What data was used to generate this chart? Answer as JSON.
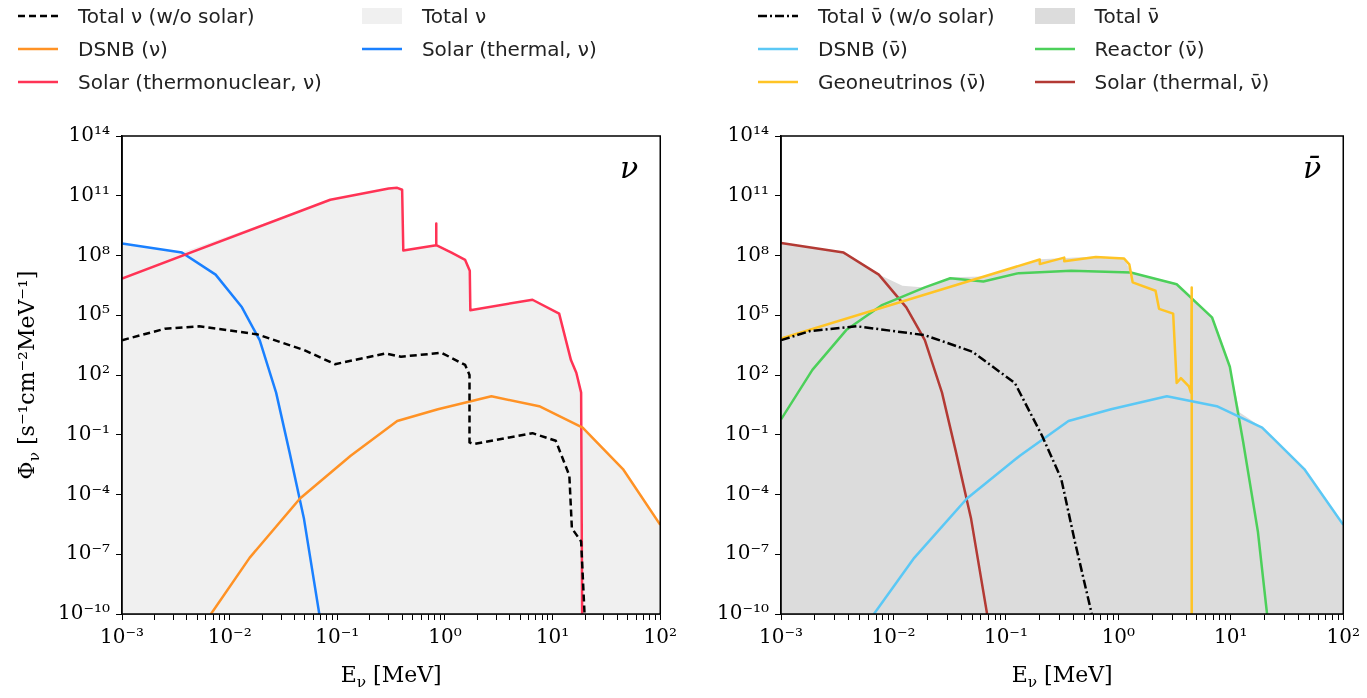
{
  "chart_data": [
    {
      "type": "line",
      "xlabel": "E$_{ν}$ [MeV]",
      "ylabel": "Φ$_{ν}$ [s⁻¹cm⁻²MeV⁻¹]",
      "log": "xy",
      "legend": "top",
      "annotations": [
        "ν"
      ],
      "xlim": [
        0.001,
        100
      ],
      "ylim": [
        1e-10,
        100000000000000.0
      ],
      "xticks": [
        {
          "value": 0.001,
          "label": "10⁻³"
        },
        {
          "value": 0.002,
          "label": null
        },
        {
          "value": 0.003,
          "label": null
        },
        {
          "value": 0.004,
          "label": null
        },
        {
          "value": 0.005,
          "label": null
        },
        {
          "value": 0.006,
          "label": null
        },
        {
          "value": 0.007,
          "label": null
        },
        {
          "value": 0.008,
          "label": null
        },
        {
          "value": 0.009,
          "label": null
        },
        {
          "value": 0.01,
          "label": "10⁻²"
        },
        {
          "value": 0.02,
          "label": null
        },
        {
          "value": 0.03,
          "label": null
        },
        {
          "value": 0.04,
          "label": null
        },
        {
          "value": 0.05,
          "label": null
        },
        {
          "value": 0.06,
          "label": null
        },
        {
          "value": 0.07,
          "label": null
        },
        {
          "value": 0.08,
          "label": null
        },
        {
          "value": 0.09,
          "label": null
        },
        {
          "value": 0.1,
          "label": "10⁻¹"
        },
        {
          "value": 0.2,
          "label": null
        },
        {
          "value": 0.3,
          "label": null
        },
        {
          "value": 0.4,
          "label": null
        },
        {
          "value": 0.5,
          "label": null
        },
        {
          "value": 0.6,
          "label": null
        },
        {
          "value": 0.7,
          "label": null
        },
        {
          "value": 0.8,
          "label": null
        },
        {
          "value": 0.9,
          "label": null
        },
        {
          "value": 1,
          "label": "10⁰"
        },
        {
          "value": 2,
          "label": null
        },
        {
          "value": 3,
          "label": null
        },
        {
          "value": 4,
          "label": null
        },
        {
          "value": 5,
          "label": null
        },
        {
          "value": 6,
          "label": null
        },
        {
          "value": 7,
          "label": null
        },
        {
          "value": 8,
          "label": null
        },
        {
          "value": 9,
          "label": null
        },
        {
          "value": 10,
          "label": "10¹"
        },
        {
          "value": 20,
          "label": null
        },
        {
          "value": 30,
          "label": null
        },
        {
          "value": 40,
          "label": null
        },
        {
          "value": 50,
          "label": null
        },
        {
          "value": 60,
          "label": null
        },
        {
          "value": 70,
          "label": null
        },
        {
          "value": 80,
          "label": null
        },
        {
          "value": 90,
          "label": null
        },
        {
          "value": 100,
          "label": "10²"
        }
      ],
      "yticks": [
        {
          "value": 1e-10,
          "label": "10⁻¹⁰"
        },
        {
          "value": 1e-07,
          "label": "10⁻⁷"
        },
        {
          "value": 0.0001,
          "label": "10⁻⁴"
        },
        {
          "value": 0.1,
          "label": "10⁻¹"
        },
        {
          "value": 100,
          "label": "10²"
        },
        {
          "value": 100000.0,
          "label": "10⁵"
        },
        {
          "value": 100000000.0,
          "label": "10⁸"
        },
        {
          "value": 100000000000.0,
          "label": "10¹¹"
        },
        {
          "value": 100000000000000.0,
          "label": "10¹⁴"
        }
      ],
      "series": [
        {
          "name": "Total ν (w/o solar)",
          "type": "line",
          "line_style": "dashed",
          "color": "#000000",
          "x": [
            0.001,
            0.0025,
            0.0052,
            0.018,
            0.049,
            0.095,
            0.28,
            0.39,
            0.93,
            1.54,
            1.69,
            1.69,
            1.84,
            6.5,
            10.7,
            14.3,
            15.1,
            18.4,
            19.8
          ],
          "values": [
            5600,
            21000,
            28000,
            11000,
            1800,
            350,
            1200,
            830,
            1300,
            320,
            100,
            0.041,
            0.034,
            0.12,
            0.05,
            0.0009,
            2e-06,
            4.4e-07,
            1e-10
          ]
        },
        {
          "name": "DSNB (ν)",
          "type": "line",
          "color": "#ff9225",
          "x": [
            0.0067,
            0.0153,
            0.045,
            0.133,
            0.36,
            0.86,
            2.7,
            7.5,
            19,
            45,
            100
          ],
          "values": [
            1e-10,
            6.6e-08,
            6.3e-05,
            0.0089,
            0.49,
            1.9,
            8.5,
            2.7,
            0.23,
            0.0019,
            3e-06
          ]
        },
        {
          "name": "Solar (thermonuclear, ν)",
          "type": "line",
          "color": "#ff3355",
          "x": [
            0.001,
            0.086,
            0.3,
            0.36,
            0.4,
            0.41,
            0.83,
            0.83,
            0.83,
            1.15,
            1.54,
            1.7,
            1.72,
            6.5,
            11.5,
            14.8,
            16.6,
            18.4,
            18.8
          ],
          "values": [
            7000000.0,
            63000000000.0,
            230000000000.0,
            250000000000.0,
            200000000000.0,
            180000000.0,
            330000000.0,
            4000000000.0,
            330000000.0,
            140000000.0,
            60000000.0,
            17000000.0,
            180000.0,
            600000.0,
            120000.0,
            560,
            130,
            13,
            1e-10
          ]
        },
        {
          "name": "Total ν",
          "type": "area",
          "color": "#f0f0f0",
          "x": [
            0.001,
            0.0036,
            0.086,
            0.3,
            0.36,
            0.4,
            0.41,
            0.83,
            1.15,
            1.54,
            1.7,
            1.72,
            6.5,
            11.5,
            14.8,
            16.6,
            18.4,
            18.8,
            45,
            100
          ],
          "values": [
            400000000.0,
            140000000.0,
            63000000000.0,
            230000000000.0,
            250000000000.0,
            200000000000.0,
            180000000.0,
            330000000.0,
            140000000.0,
            60000000.0,
            17000000.0,
            180000.0,
            600000.0,
            120000.0,
            560,
            130,
            13,
            0.25,
            0.0019,
            3e-06
          ]
        },
        {
          "name": "Solar (thermal, ν)",
          "type": "line",
          "color": "#1a80ff",
          "x": [
            0.001,
            0.0036,
            0.0074,
            0.013,
            0.019,
            0.027,
            0.036,
            0.049,
            0.068
          ],
          "values": [
            400000000.0,
            140000000.0,
            11000000.0,
            250000.0,
            5600,
            13,
            0.013,
            6e-06,
            1e-10
          ]
        }
      ]
    },
    {
      "type": "line",
      "xlabel": "E$_{ν}$ [MeV]",
      "log": "xy",
      "legend": "top",
      "annotations": [
        "ν̄"
      ],
      "xlim": [
        0.001,
        100
      ],
      "ylim": [
        1e-10,
        100000000000000.0
      ],
      "xticks": [
        {
          "value": 0.001,
          "label": "10⁻³"
        },
        {
          "value": 0.002,
          "label": null
        },
        {
          "value": 0.003,
          "label": null
        },
        {
          "value": 0.004,
          "label": null
        },
        {
          "value": 0.005,
          "label": null
        },
        {
          "value": 0.006,
          "label": null
        },
        {
          "value": 0.007,
          "label": null
        },
        {
          "value": 0.008,
          "label": null
        },
        {
          "value": 0.009,
          "label": null
        },
        {
          "value": 0.01,
          "label": "10⁻²"
        },
        {
          "value": 0.02,
          "label": null
        },
        {
          "value": 0.03,
          "label": null
        },
        {
          "value": 0.04,
          "label": null
        },
        {
          "value": 0.05,
          "label": null
        },
        {
          "value": 0.06,
          "label": null
        },
        {
          "value": 0.07,
          "label": null
        },
        {
          "value": 0.08,
          "label": null
        },
        {
          "value": 0.09,
          "label": null
        },
        {
          "value": 0.1,
          "label": "10⁻¹"
        },
        {
          "value": 0.2,
          "label": null
        },
        {
          "value": 0.3,
          "label": null
        },
        {
          "value": 0.4,
          "label": null
        },
        {
          "value": 0.5,
          "label": null
        },
        {
          "value": 0.6,
          "label": null
        },
        {
          "value": 0.7,
          "label": null
        },
        {
          "value": 0.8,
          "label": null
        },
        {
          "value": 0.9,
          "label": null
        },
        {
          "value": 1,
          "label": "10⁰"
        },
        {
          "value": 2,
          "label": null
        },
        {
          "value": 3,
          "label": null
        },
        {
          "value": 4,
          "label": null
        },
        {
          "value": 5,
          "label": null
        },
        {
          "value": 6,
          "label": null
        },
        {
          "value": 7,
          "label": null
        },
        {
          "value": 8,
          "label": null
        },
        {
          "value": 9,
          "label": null
        },
        {
          "value": 10,
          "label": "10¹"
        },
        {
          "value": 20,
          "label": null
        },
        {
          "value": 30,
          "label": null
        },
        {
          "value": 40,
          "label": null
        },
        {
          "value": 50,
          "label": null
        },
        {
          "value": 60,
          "label": null
        },
        {
          "value": 70,
          "label": null
        },
        {
          "value": 80,
          "label": null
        },
        {
          "value": 90,
          "label": null
        },
        {
          "value": 100,
          "label": "10²"
        }
      ],
      "yticks": [
        {
          "value": 1e-10,
          "label": "10⁻¹⁰"
        },
        {
          "value": 1e-07,
          "label": "10⁻⁷"
        },
        {
          "value": 0.0001,
          "label": "10⁻⁴"
        },
        {
          "value": 0.1,
          "label": "10⁻¹"
        },
        {
          "value": 100,
          "label": "10²"
        },
        {
          "value": 100000.0,
          "label": "10⁵"
        },
        {
          "value": 100000000.0,
          "label": "10⁸"
        },
        {
          "value": 100000000000.0,
          "label": "10¹¹"
        },
        {
          "value": 100000000000000.0,
          "label": "10¹⁴"
        }
      ],
      "series": [
        {
          "name": "Total ν̄ (w/o solar)",
          "type": "line",
          "line_style": "dashdot",
          "color": "#000000",
          "x": [
            0.001,
            0.0018,
            0.0047,
            0.019,
            0.05,
            0.12,
            0.21,
            0.31,
            0.41,
            0.58
          ],
          "values": [
            5600,
            16000,
            28000,
            10000,
            1500,
            40,
            0.087,
            0.00063,
            4.4e-07,
            1e-10
          ]
        },
        {
          "name": "DSNB (ν̄)",
          "type": "line",
          "color": "#5bc8f5",
          "x": [
            0.0067,
            0.0153,
            0.045,
            0.133,
            0.36,
            0.86,
            2.7,
            7.5,
            19,
            45,
            100
          ],
          "values": [
            1e-10,
            6.6e-08,
            6.3e-05,
            0.0089,
            0.49,
            1.9,
            8.5,
            2.7,
            0.23,
            0.0019,
            3e-06
          ]
        },
        {
          "name": "Geoneutrinos (ν̄)",
          "type": "line",
          "color": "#ffc425",
          "x": [
            0.001,
            0.2,
            0.2,
            0.33,
            0.33,
            0.63,
            1.12,
            1.25,
            1.34,
            2.14,
            2.3,
            3.07,
            3.3,
            3.6,
            4.24,
            4.42,
            4.49,
            4.49
          ],
          "values": [
            6800,
            63000000.0,
            37000000.0,
            78000000.0,
            52000000.0,
            83000000.0,
            71000000.0,
            36000000.0,
            4500000.0,
            1700000.0,
            210000.0,
            120000.0,
            40,
            70,
            27,
            13,
            2500000.0,
            1e-10
          ]
        },
        {
          "name": "Total ν̄",
          "type": "area",
          "color": "#dcdcdc",
          "x": [
            0.001,
            0.0036,
            0.0074,
            0.012,
            0.019,
            0.032,
            0.063,
            0.13,
            0.2,
            0.63,
            1.12,
            1.29,
            3.3,
            6.8,
            9.8,
            12,
            19,
            45,
            100
          ],
          "values": [
            430000000.0,
            140000000.0,
            11000000.0,
            3000000.0,
            2500000.0,
            8000000.0,
            8700000.0,
            30000000.0,
            65000000.0,
            89000000.0,
            76000000.0,
            15000000.0,
            4000000.0,
            79000,
            260,
            1.3,
            0.23,
            0.0019,
            3e-06
          ]
        },
        {
          "name": "Reactor (ν̄)",
          "type": "line",
          "color": "#4cd05a",
          "x": [
            0.001,
            0.0019,
            0.0038,
            0.0078,
            0.019,
            0.032,
            0.063,
            0.13,
            0.38,
            1.29,
            3.3,
            6.8,
            9.8,
            12.9,
            17.4,
            21
          ],
          "values": [
            0.59,
            180,
            18000,
            310000,
            2500000.0,
            7200000.0,
            5000000.0,
            13000000.0,
            17000000.0,
            14000000.0,
            3600000.0,
            79000,
            260,
            0.041,
            1.4e-06,
            1e-10
          ]
        },
        {
          "name": "Solar (thermal, ν̄)",
          "type": "line",
          "color": "#b33a34",
          "x": [
            0.001,
            0.0036,
            0.0074,
            0.013,
            0.019,
            0.027,
            0.036,
            0.049,
            0.068
          ],
          "values": [
            430000000.0,
            140000000.0,
            11000000.0,
            250000.0,
            5600,
            13,
            0.013,
            6e-06,
            1e-10
          ]
        }
      ]
    }
  ]
}
